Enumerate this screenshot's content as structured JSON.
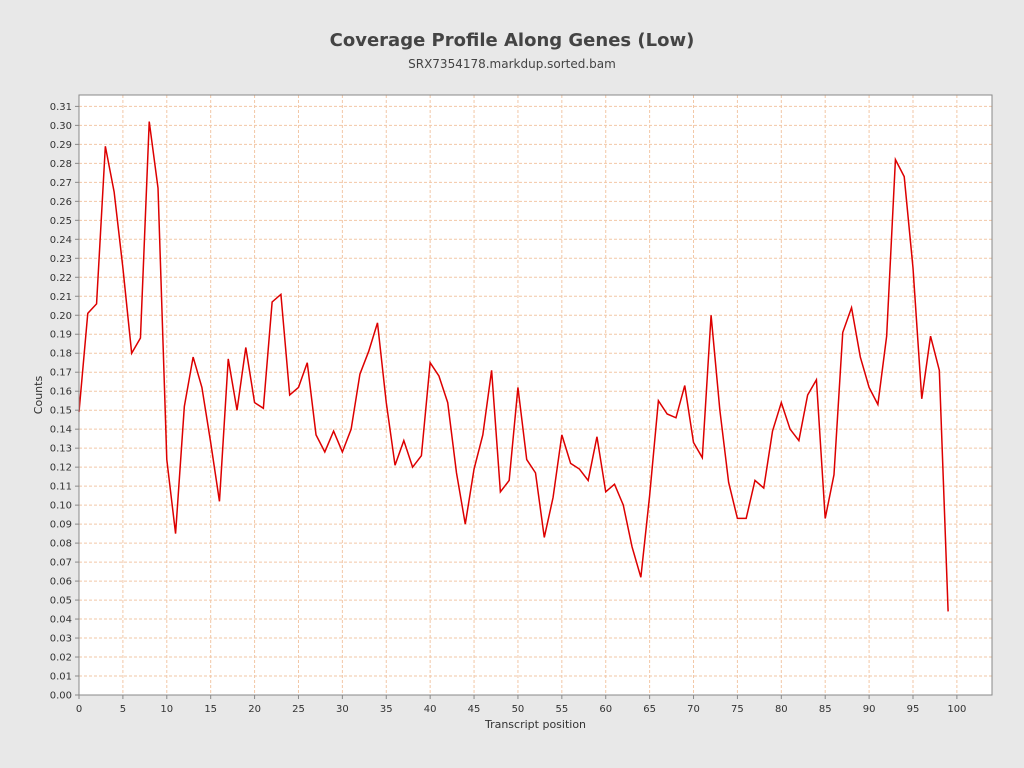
{
  "chart_data": {
    "type": "line",
    "title": "Coverage Profile Along Genes (Low)",
    "subtitle": "SRX7354178.markdup.sorted.bam",
    "xlabel": "Transcript position",
    "ylabel": "Counts",
    "xlim": [
      0,
      104
    ],
    "ylim": [
      0,
      0.316
    ],
    "x_ticks": [
      0,
      5,
      10,
      15,
      20,
      25,
      30,
      35,
      40,
      45,
      50,
      55,
      60,
      65,
      70,
      75,
      80,
      85,
      90,
      95,
      100
    ],
    "y_ticks": [
      0.0,
      0.01,
      0.02,
      0.03,
      0.04,
      0.05,
      0.06,
      0.07,
      0.08,
      0.09,
      0.1,
      0.11,
      0.12,
      0.13,
      0.14,
      0.15,
      0.16,
      0.17,
      0.18,
      0.19,
      0.2,
      0.21,
      0.22,
      0.23,
      0.24,
      0.25,
      0.26,
      0.27,
      0.28,
      0.29,
      0.3,
      0.31
    ],
    "grid": true,
    "colors": {
      "line": "#dd0000",
      "grid": "#f2c7a6",
      "background": "#ffffff",
      "page": "#e8e8e8"
    },
    "x": [
      0,
      1,
      2,
      3,
      4,
      5,
      6,
      7,
      8,
      9,
      10,
      11,
      12,
      13,
      14,
      15,
      16,
      17,
      18,
      19,
      20,
      21,
      22,
      23,
      24,
      25,
      26,
      27,
      28,
      29,
      30,
      31,
      32,
      33,
      34,
      35,
      36,
      37,
      38,
      39,
      40,
      41,
      42,
      43,
      44,
      45,
      46,
      47,
      48,
      49,
      50,
      51,
      52,
      53,
      54,
      55,
      56,
      57,
      58,
      59,
      60,
      61,
      62,
      63,
      64,
      65,
      66,
      67,
      68,
      69,
      70,
      71,
      72,
      73,
      74,
      75,
      76,
      77,
      78,
      79,
      80,
      81,
      82,
      83,
      84,
      85,
      86,
      87,
      88,
      89,
      90,
      91,
      92,
      93,
      94,
      95,
      96,
      97,
      98,
      99
    ],
    "values": [
      0.149,
      0.201,
      0.206,
      0.289,
      0.265,
      0.225,
      0.18,
      0.188,
      0.302,
      0.267,
      0.124,
      0.085,
      0.152,
      0.178,
      0.162,
      0.133,
      0.102,
      0.177,
      0.15,
      0.183,
      0.154,
      0.151,
      0.207,
      0.211,
      0.158,
      0.162,
      0.175,
      0.137,
      0.128,
      0.139,
      0.128,
      0.14,
      0.169,
      0.181,
      0.196,
      0.154,
      0.121,
      0.134,
      0.12,
      0.126,
      0.175,
      0.168,
      0.154,
      0.117,
      0.09,
      0.119,
      0.137,
      0.171,
      0.107,
      0.113,
      0.162,
      0.124,
      0.117,
      0.083,
      0.104,
      0.137,
      0.122,
      0.119,
      0.113,
      0.136,
      0.107,
      0.111,
      0.1,
      0.078,
      0.062,
      0.105,
      0.155,
      0.148,
      0.146,
      0.163,
      0.133,
      0.125,
      0.2,
      0.15,
      0.112,
      0.093,
      0.093,
      0.113,
      0.109,
      0.139,
      0.154,
      0.14,
      0.134,
      0.158,
      0.166,
      0.093,
      0.116,
      0.191,
      0.204,
      0.178,
      0.162,
      0.153,
      0.189,
      0.282,
      0.273,
      0.225,
      0.156,
      0.189,
      0.171,
      0.044
    ]
  }
}
